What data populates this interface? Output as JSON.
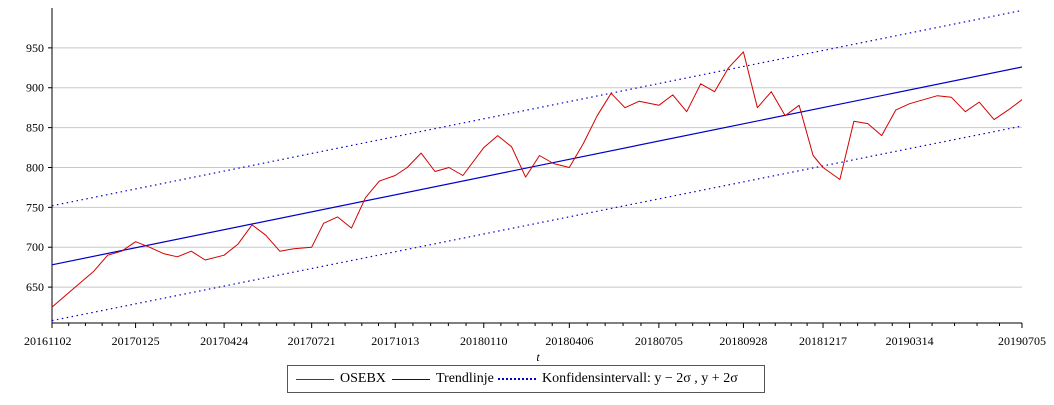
{
  "chart_data": {
    "type": "line",
    "title": "",
    "xlabel": "t",
    "ylabel": "",
    "ylim": [
      605,
      1000
    ],
    "yticks": [
      650,
      700,
      750,
      800,
      850,
      900,
      950
    ],
    "grid": "horizontal",
    "legend_position": "bottom-center",
    "xtick_labels": [
      "20161102",
      "20170125",
      "20170424",
      "20170721",
      "20171013",
      "20180110",
      "20180406",
      "20180705",
      "20180928",
      "20181217",
      "20190314",
      "20190705"
    ],
    "series": [
      {
        "name": "OSEBX",
        "color": "#d40000",
        "style": "solid",
        "x": [
          "20161102",
          "20161116",
          "20161130",
          "20161214",
          "20161228",
          "20170111",
          "20170125",
          "20170208",
          "20170222",
          "20170308",
          "20170322",
          "20170405",
          "20170424",
          "20170508",
          "20170522",
          "20170605",
          "20170619",
          "20170703",
          "20170721",
          "20170802",
          "20170816",
          "20170830",
          "20170913",
          "20170927",
          "20171013",
          "20171025",
          "20171108",
          "20171122",
          "20171206",
          "20171220",
          "20180110",
          "20180124",
          "20180207",
          "20180221",
          "20180307",
          "20180321",
          "20180406",
          "20180420",
          "20180504",
          "20180518",
          "20180601",
          "20180615",
          "20180705",
          "20180719",
          "20180802",
          "20180816",
          "20180830",
          "20180913",
          "20180928",
          "20181012",
          "20181026",
          "20181109",
          "20181123",
          "20181207",
          "20181217",
          "20190103",
          "20190117",
          "20190131",
          "20190214",
          "20190228",
          "20190314",
          "20190328",
          "20190411",
          "20190425",
          "20190509",
          "20190523",
          "20190607",
          "20190621",
          "20190705"
        ],
        "values": [
          625,
          640,
          655,
          670,
          690,
          695,
          707,
          700,
          692,
          688,
          695,
          684,
          690,
          704,
          728,
          715,
          695,
          698,
          700,
          730,
          738,
          724,
          762,
          783,
          790,
          800,
          818,
          795,
          800,
          790,
          825,
          840,
          826,
          788,
          815,
          805,
          800,
          830,
          865,
          893,
          875,
          883,
          878,
          891,
          870,
          905,
          895,
          925,
          945,
          875,
          895,
          865,
          878,
          815,
          800,
          785,
          858,
          855,
          840,
          872,
          880,
          885,
          890,
          888,
          870,
          882,
          860,
          872,
          885
        ]
      },
      {
        "name": "Trendlinje",
        "color": "#0000c8",
        "style": "solid",
        "x": [
          "20161102",
          "20190705"
        ],
        "values": [
          678,
          926
        ]
      },
      {
        "name": "Konfidensintervall: y − 2σ , y + 2σ",
        "color": "#0000c8",
        "style": "dotted",
        "lower": [
          608,
          852
        ],
        "upper": [
          752,
          997
        ]
      }
    ]
  },
  "legend": {
    "osebx_label": "OSEBX",
    "trend_label": "Trendlinje",
    "ci_label": "Konfidensintervall: y − 2σ , y + 2σ"
  }
}
